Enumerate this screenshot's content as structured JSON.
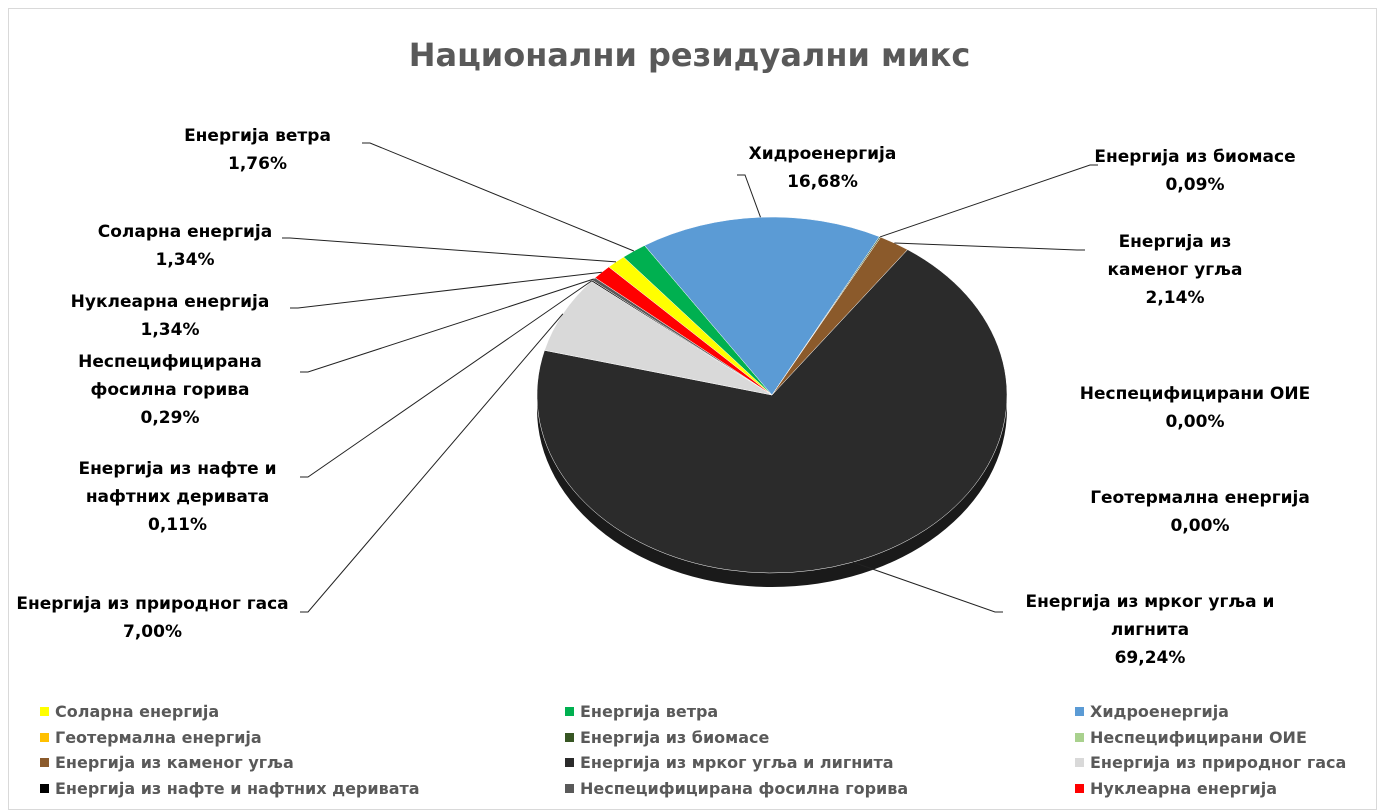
{
  "chart_data": {
    "type": "pie",
    "title": "Национални резидуални микс",
    "categories": [
      "Соларна енергија",
      "Енергија ветра",
      "Хидроенергија",
      "Геотермална енергија",
      "Енергија из биомасе",
      "Неспецифицирани ОИЕ",
      "Енергија из каменог угља",
      "Енергија из мрког угља и лигнита",
      "Енергија из природног гаса",
      "Енергија из нафте и нафтних деривата",
      "Неспецифицирана фосилна горива",
      "Нуклеарна енергија"
    ],
    "values": [
      1.34,
      1.76,
      16.68,
      0.0,
      0.09,
      0.0,
      2.14,
      69.24,
      7.0,
      0.11,
      0.29,
      1.34
    ],
    "value_labels": [
      "1,34%",
      "1,76%",
      "16,68%",
      "0,00%",
      "0,09%",
      "0,00%",
      "2,14%",
      "69,24%",
      "7,00%",
      "0,11%",
      "0,29%",
      "1,34%"
    ],
    "colors": [
      "#ffff00",
      "#00b050",
      "#5b9bd5",
      "#ffc000",
      "#375623",
      "#a9d18e",
      "#8b5a2b",
      "#2b2b2b",
      "#d9d9d9",
      "#000000",
      "#595959",
      "#ff0000"
    ],
    "legend": "bottom"
  }
}
